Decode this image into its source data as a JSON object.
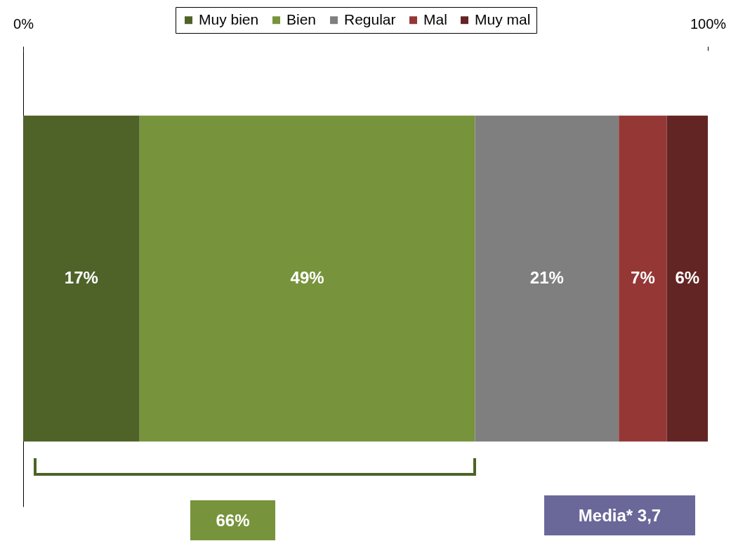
{
  "chart_data": {
    "type": "bar",
    "orientation": "horizontal",
    "stacked": true,
    "categories": [
      null
    ],
    "series": [
      {
        "name": "Muy bien",
        "color": "#4f6228",
        "values": [
          17
        ],
        "value_labels": [
          "17%"
        ]
      },
      {
        "name": "Bien",
        "color": "#77933c",
        "values": [
          49
        ],
        "value_labels": [
          "49%"
        ]
      },
      {
        "name": "Regular",
        "color": "#7f7f7f",
        "values": [
          21
        ],
        "value_labels": [
          "21%"
        ]
      },
      {
        "name": "Mal",
        "color": "#953735",
        "values": [
          7
        ],
        "value_labels": [
          "7%"
        ]
      },
      {
        "name": "Muy mal",
        "color": "#632523",
        "values": [
          6
        ],
        "value_labels": [
          "6%"
        ]
      }
    ],
    "xlim": [
      0,
      100
    ],
    "xticks": [
      {
        "value": 0,
        "label": "0%"
      },
      {
        "value": 100,
        "label": "100%"
      }
    ],
    "legend": "top",
    "grid": false,
    "annotations": [
      "66%",
      "Media* 3,7"
    ]
  }
}
